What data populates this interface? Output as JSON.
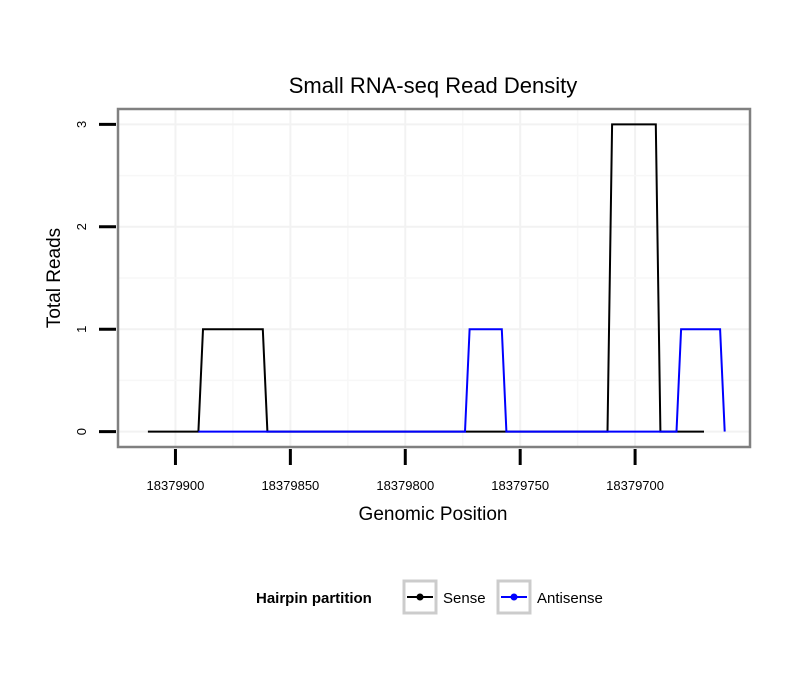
{
  "chart_data": {
    "type": "line",
    "title": "Small RNA-seq Read Density",
    "xlabel": "Genomic Position",
    "ylabel": "Total Reads",
    "x_reversed": true,
    "xlim": [
      18379925,
      18379650
    ],
    "ylim": [
      -0.15,
      3.15
    ],
    "xticks": [
      18379900,
      18379850,
      18379800,
      18379750,
      18379700
    ],
    "xtick_labels": [
      "18379900",
      "18379850",
      "18379800",
      "18379750",
      "18379700"
    ],
    "yticks": [
      0,
      1,
      2,
      3
    ],
    "ytick_labels": [
      "0",
      "1",
      "2",
      "3"
    ],
    "grid": true,
    "legend": {
      "title": "Hairpin partition",
      "position": "bottom",
      "entries": [
        "Sense",
        "Antisense"
      ]
    },
    "series": [
      {
        "name": "Sense",
        "color": "#000000",
        "points": [
          [
            18379912,
            0
          ],
          [
            18379890,
            0
          ],
          [
            18379888,
            1
          ],
          [
            18379862,
            1
          ],
          [
            18379860,
            0
          ],
          [
            18379712,
            0
          ],
          [
            18379710,
            3
          ],
          [
            18379691,
            3
          ],
          [
            18379689,
            0
          ],
          [
            18379670,
            0
          ]
        ]
      },
      {
        "name": "Antisense",
        "color": "#0000ff",
        "points": [
          [
            18379890,
            0
          ],
          [
            18379860,
            0
          ],
          [
            18379774,
            0
          ],
          [
            18379772,
            1
          ],
          [
            18379758,
            1
          ],
          [
            18379756,
            0
          ],
          [
            18379689,
            0
          ],
          [
            18379682,
            0
          ],
          [
            18379680,
            1
          ],
          [
            18379663,
            1
          ],
          [
            18379661,
            0
          ]
        ]
      }
    ]
  }
}
